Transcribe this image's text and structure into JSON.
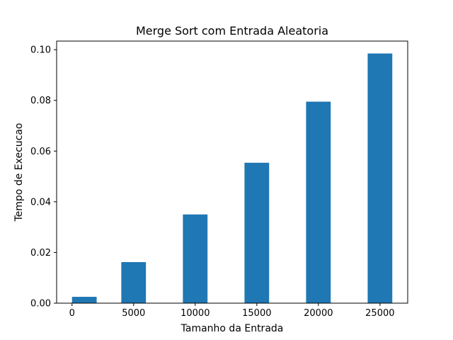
{
  "chart_data": {
    "type": "bar",
    "title": "Merge Sort com Entrada Aleatoria",
    "xlabel": "Tamanho da Entrada",
    "ylabel": "Tempo de Execucao",
    "x": [
      1000,
      5000,
      10000,
      15000,
      20000,
      25000
    ],
    "values": [
      0.0025,
      0.0162,
      0.035,
      0.0554,
      0.0795,
      0.0985
    ],
    "bar_width": 2000,
    "bar_color": "#1f77b4",
    "xlim": [
      -1250,
      27250
    ],
    "ylim": [
      0,
      0.1034
    ],
    "xticks": [
      0,
      5000,
      10000,
      15000,
      20000,
      25000
    ],
    "xtick_labels": [
      "0",
      "5000",
      "10000",
      "15000",
      "20000",
      "25000"
    ],
    "yticks": [
      0,
      0.02,
      0.04,
      0.06,
      0.08,
      0.1
    ],
    "ytick_labels": [
      "0.00",
      "0.02",
      "0.04",
      "0.06",
      "0.08",
      "0.10"
    ],
    "grid": false,
    "legend": "none"
  }
}
